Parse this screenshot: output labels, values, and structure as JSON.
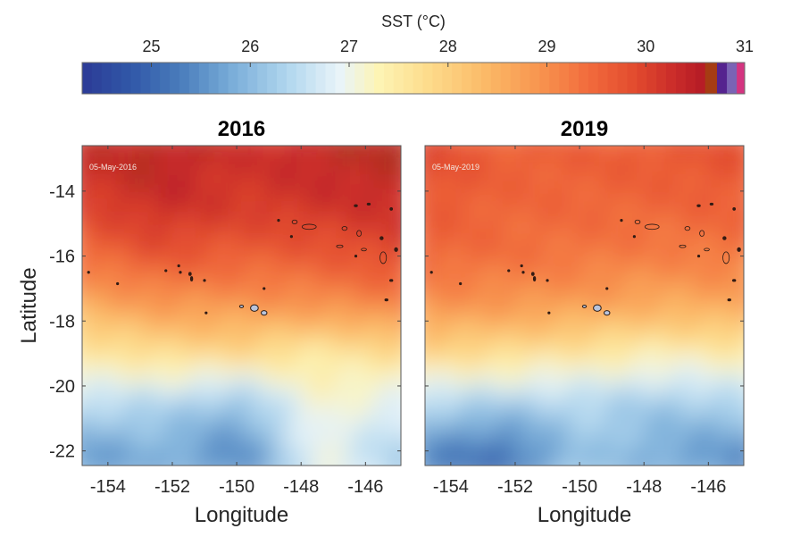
{
  "chart_data": {
    "type": "heatmap",
    "title": "SST (°C)",
    "colorbar": {
      "label": "SST (°C)",
      "ticks": [
        25,
        26,
        27,
        28,
        29,
        30,
        31
      ],
      "range": [
        24.3,
        31.0
      ],
      "placement": "top",
      "gradient_stops": [
        {
          "value": 24.3,
          "color": "#2b3a96"
        },
        {
          "value": 24.8,
          "color": "#3158a8"
        },
        {
          "value": 25.3,
          "color": "#4a7dbc"
        },
        {
          "value": 25.8,
          "color": "#78acd8"
        },
        {
          "value": 26.4,
          "color": "#b3d8ef"
        },
        {
          "value": 26.9,
          "color": "#e9f4f9"
        },
        {
          "value": 27.3,
          "color": "#fdf4b4"
        },
        {
          "value": 27.8,
          "color": "#fddc8c"
        },
        {
          "value": 28.4,
          "color": "#fbb866"
        },
        {
          "value": 28.9,
          "color": "#f89650"
        },
        {
          "value": 29.4,
          "color": "#f26d3d"
        },
        {
          "value": 29.9,
          "color": "#e24a2e"
        },
        {
          "value": 30.3,
          "color": "#c92b2a"
        },
        {
          "value": 30.6,
          "color": "#b31a25"
        }
      ],
      "extra_bins": [
        {
          "from": 30.6,
          "to": 30.72,
          "color": "#a63c13"
        },
        {
          "from": 30.72,
          "to": 30.82,
          "color": "#55238f"
        },
        {
          "from": 30.82,
          "to": 30.92,
          "color": "#7a63b5"
        },
        {
          "from": 30.92,
          "to": 31.0,
          "color": "#d43480"
        }
      ]
    },
    "xlabel": "Longitude",
    "ylabel": "Latitude",
    "xlim": [
      -154.8,
      -144.9
    ],
    "ylim": [
      -22.45,
      -12.6
    ],
    "xticks": [
      -154,
      -152,
      -150,
      -148,
      -146
    ],
    "yticks": [
      -14,
      -16,
      -18,
      -20,
      -22
    ],
    "grid": false,
    "panels": [
      {
        "title": "2016",
        "date": "05-May-2016",
        "field_samples": {
          "description": "Approximate SST (°C) by latitude band, west→east",
          "lat": [
            -13,
            -14.5,
            -16,
            -17.5,
            -19,
            -20.5,
            -22
          ],
          "values": [
            [
              30.3,
              30.5,
              30.2,
              30.4,
              30.5
            ],
            [
              30.0,
              30.3,
              30.1,
              30.2,
              30.3
            ],
            [
              29.4,
              29.8,
              29.6,
              29.7,
              29.9
            ],
            [
              28.6,
              28.9,
              28.9,
              29.0,
              29.2
            ],
            [
              27.5,
              27.8,
              27.9,
              27.5,
              27.8
            ],
            [
              26.6,
              26.4,
              26.1,
              27.2,
              26.8
            ],
            [
              25.6,
              25.9,
              25.4,
              27.0,
              26.3
            ]
          ]
        }
      },
      {
        "title": "2019",
        "date": "05-May-2019",
        "field_samples": {
          "description": "Approximate SST (°C) by latitude band, west→east",
          "lat": [
            -13,
            -14.5,
            -16,
            -17.5,
            -19,
            -20.5,
            -22
          ],
          "values": [
            [
              29.9,
              29.6,
              29.6,
              29.7,
              29.8
            ],
            [
              29.7,
              29.5,
              29.5,
              29.5,
              29.6
            ],
            [
              29.5,
              29.4,
              29.3,
              29.2,
              29.3
            ],
            [
              29.0,
              28.9,
              28.8,
              28.6,
              28.7
            ],
            [
              27.9,
              27.8,
              27.6,
              27.4,
              27.5
            ],
            [
              26.5,
              26.3,
              26.4,
              26.2,
              26.4
            ],
            [
              25.4,
              25.1,
              26.2,
              25.8,
              25.5
            ]
          ]
        }
      }
    ]
  }
}
